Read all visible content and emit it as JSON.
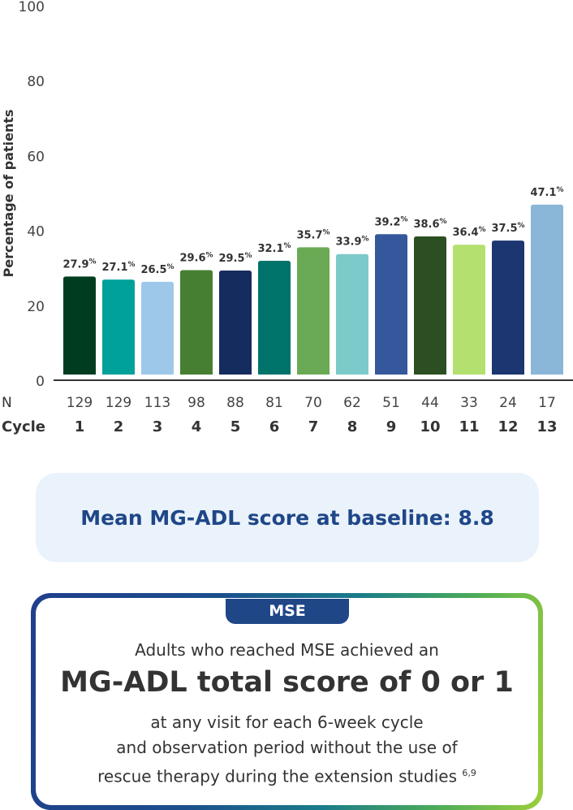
{
  "chart_data": {
    "type": "bar",
    "ylabel": "Percentage of patients",
    "ylim": [
      0,
      100
    ],
    "yticks": [
      0,
      20,
      40,
      60,
      80,
      100
    ],
    "grid": false,
    "row_labels": {
      "n": "N",
      "cycle": "Cycle"
    },
    "categories": [
      "1",
      "2",
      "3",
      "4",
      "5",
      "6",
      "7",
      "8",
      "9",
      "10",
      "11",
      "12",
      "13"
    ],
    "n_values": [
      "129",
      "129",
      "113",
      "98",
      "88",
      "81",
      "70",
      "62",
      "51",
      "44",
      "33",
      "24",
      "17"
    ],
    "values": [
      27.9,
      27.1,
      26.5,
      29.6,
      29.5,
      32.1,
      35.7,
      33.9,
      39.2,
      38.6,
      36.4,
      37.5,
      47.1
    ],
    "value_suffix": "%",
    "colors": [
      "#003d20",
      "#00a19a",
      "#9dc8ea",
      "#467f31",
      "#152c5f",
      "#00736a",
      "#6aaa55",
      "#7ccac9",
      "#34589b",
      "#2b4f22",
      "#b3e06e",
      "#1b3670",
      "#8ab6d8"
    ]
  },
  "baseline": {
    "text": "Mean MG-ADL score at baseline: 8.8"
  },
  "mse": {
    "tab": "MSE",
    "line1": "Adults who reached MSE achieved an",
    "headline": "MG-ADL total score of 0 or 1",
    "line2": "at any visit for each 6-week cycle",
    "line3": "and observation period without the use of",
    "line4": "rescue therapy during the extension studies",
    "refs": "6,9"
  }
}
